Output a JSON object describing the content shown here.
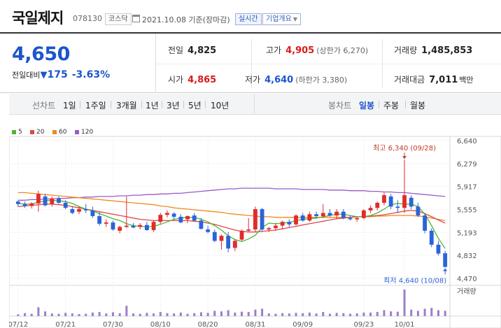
{
  "header": {
    "name": "국일제지",
    "code": "078130",
    "market": "코스닥",
    "base_date": "2021.10.08 기준(장마감)",
    "realtime_label": "실시간",
    "corp_overview_label": "기업개요"
  },
  "price": {
    "current": "4,650",
    "change_label": "전일대비",
    "change_value": "175",
    "change_rate": "-3.63%",
    "prev_close_label": "전일",
    "prev_close": "4,825",
    "high_label": "고가",
    "high": "4,905",
    "upper_limit": "(상한가 6,270)",
    "volume_label": "거래량",
    "volume": "1,485,853",
    "open_label": "시가",
    "open": "4,865",
    "low_label": "저가",
    "low": "4,640",
    "lower_limit": "(하한가 3,380)",
    "amount_label": "거래대금",
    "amount": "7,011",
    "amount_unit": "백만"
  },
  "toolbar": {
    "line_chart_label": "선차트",
    "periods": [
      "1일",
      "1주일",
      "3개월",
      "1년",
      "3년",
      "5년",
      "10년"
    ],
    "candle_chart_label": "봉차트",
    "candle_periods": [
      "일봉",
      "주봉",
      "월봉"
    ],
    "active_candle": "일봉"
  },
  "colors": {
    "up": "#e22b2b",
    "down": "#2b63d9",
    "ma5": "#4fb43a",
    "ma20": "#e04848",
    "ma60": "#f08a1e",
    "ma120": "#9b59c9"
  },
  "chart_data": {
    "type": "candlestick",
    "legend": [
      "5",
      "20",
      "60",
      "120"
    ],
    "y_ticks": [
      "6,640",
      "6,279",
      "5,917",
      "5,555",
      "5,193",
      "4,832",
      "4,470"
    ],
    "y_range": [
      4470,
      6640
    ],
    "x_labels": [
      "07/12",
      "07/21",
      "07/30",
      "08/10",
      "08/20",
      "08/31",
      "09/09",
      "09/23",
      "10/01"
    ],
    "high_annotation": "최고 6,340 (09/28)",
    "low_annotation": "최저 4,640 (10/08)",
    "volume_label": "거래량",
    "candles": [
      [
        5680,
        5700,
        5600,
        5640
      ],
      [
        5640,
        5680,
        5580,
        5610
      ],
      [
        5610,
        5670,
        5570,
        5650
      ],
      [
        5650,
        5850,
        5520,
        5800
      ],
      [
        5760,
        5800,
        5600,
        5620
      ],
      [
        5640,
        5760,
        5600,
        5730
      ],
      [
        5730,
        5760,
        5640,
        5660
      ],
      [
        5660,
        5700,
        5560,
        5580
      ],
      [
        5560,
        5600,
        5480,
        5500
      ],
      [
        5520,
        5600,
        5480,
        5560
      ],
      [
        5560,
        5640,
        5500,
        5540
      ],
      [
        5540,
        5600,
        5420,
        5450
      ],
      [
        5450,
        5520,
        5300,
        5330
      ],
      [
        5330,
        5400,
        5280,
        5350
      ],
      [
        5350,
        5380,
        5220,
        5240
      ],
      [
        5220,
        5300,
        5180,
        5280
      ],
      [
        5280,
        5760,
        5260,
        5300
      ],
      [
        5300,
        5340,
        5260,
        5270
      ],
      [
        5280,
        5340,
        5240,
        5310
      ],
      [
        5310,
        5360,
        5220,
        5230
      ],
      [
        5230,
        5380,
        5200,
        5360
      ],
      [
        5360,
        5500,
        5330,
        5470
      ],
      [
        5470,
        5540,
        5430,
        5500
      ],
      [
        5490,
        5510,
        5400,
        5440
      ],
      [
        5440,
        5480,
        5340,
        5350
      ],
      [
        5400,
        5460,
        5340,
        5450
      ],
      [
        5460,
        5500,
        5360,
        5380
      ],
      [
        5380,
        5420,
        5240,
        5250
      ],
      [
        5240,
        5300,
        5180,
        5200
      ],
      [
        5200,
        5240,
        5040,
        5060
      ],
      [
        5060,
        5160,
        4920,
        5140
      ],
      [
        5140,
        5200,
        4880,
        4940
      ],
      [
        4950,
        5090,
        4900,
        5060
      ],
      [
        5080,
        5240,
        5060,
        5220
      ],
      [
        5220,
        5420,
        5200,
        5240
      ],
      [
        5240,
        5600,
        5200,
        5560
      ],
      [
        5560,
        5580,
        5220,
        5240
      ],
      [
        5240,
        5280,
        5200,
        5260
      ],
      [
        5260,
        5340,
        5220,
        5300
      ],
      [
        5300,
        5380,
        5240,
        5360
      ],
      [
        5360,
        5400,
        5280,
        5320
      ],
      [
        5320,
        5480,
        5300,
        5460
      ],
      [
        5460,
        5500,
        5360,
        5380
      ],
      [
        5380,
        5520,
        5360,
        5480
      ],
      [
        5480,
        5520,
        5420,
        5450
      ],
      [
        5450,
        5640,
        5420,
        5500
      ],
      [
        5500,
        5560,
        5440,
        5460
      ],
      [
        5460,
        5560,
        5400,
        5520
      ],
      [
        5520,
        5560,
        5400,
        5420
      ],
      [
        5420,
        5460,
        5380,
        5400
      ],
      [
        5400,
        5440,
        5360,
        5420
      ],
      [
        5420,
        5560,
        5400,
        5540
      ],
      [
        5540,
        5620,
        5500,
        5580
      ],
      [
        5580,
        5680,
        5540,
        5660
      ],
      [
        5660,
        5820,
        5620,
        5780
      ],
      [
        5760,
        5800,
        5560,
        5600
      ],
      [
        5600,
        5700,
        5500,
        5580
      ],
      [
        5580,
        6340,
        5500,
        5780
      ],
      [
        5740,
        5780,
        5560,
        5600
      ],
      [
        5600,
        5660,
        5440,
        5460
      ],
      [
        5460,
        5500,
        5180,
        5220
      ],
      [
        5220,
        5260,
        4960,
        5000
      ],
      [
        5000,
        5060,
        4830,
        4860
      ],
      [
        4865,
        4905,
        4640,
        4650
      ]
    ],
    "volumes": [
      6,
      10,
      8,
      30,
      16,
      9,
      8,
      11,
      9,
      7,
      8,
      12,
      14,
      9,
      13,
      10,
      35,
      9,
      8,
      11,
      9,
      14,
      10,
      9,
      12,
      8,
      10,
      13,
      11,
      18,
      16,
      20,
      12,
      15,
      14,
      22,
      25,
      9,
      8,
      10,
      9,
      11,
      10,
      12,
      9,
      14,
      8,
      11,
      10,
      8,
      9,
      12,
      12,
      14,
      20,
      16,
      15,
      90,
      22,
      18,
      25,
      28,
      20,
      18
    ],
    "ma5": [
      5650,
      5640,
      5640,
      5670,
      5690,
      5700,
      5690,
      5680,
      5650,
      5600,
      5560,
      5530,
      5490,
      5450,
      5410,
      5380,
      5330,
      5300,
      5290,
      5280,
      5290,
      5320,
      5360,
      5400,
      5420,
      5430,
      5430,
      5400,
      5360,
      5300,
      5230,
      5140,
      5080,
      5050,
      5090,
      5150,
      5270,
      5340,
      5330,
      5340,
      5350,
      5380,
      5400,
      5410,
      5420,
      5440,
      5460,
      5480,
      5480,
      5460,
      5440,
      5440,
      5460,
      5500,
      5560,
      5630,
      5650,
      5640,
      5640,
      5600,
      5480,
      5300,
      5100,
      4940
    ],
    "ma20": [
      5600,
      5610,
      5620,
      5630,
      5640,
      5640,
      5630,
      5620,
      5600,
      5580,
      5560,
      5540,
      5520,
      5500,
      5480,
      5460,
      5440,
      5420,
      5400,
      5390,
      5380,
      5380,
      5380,
      5380,
      5380,
      5380,
      5370,
      5360,
      5340,
      5320,
      5290,
      5260,
      5230,
      5210,
      5200,
      5200,
      5210,
      5220,
      5230,
      5250,
      5270,
      5290,
      5310,
      5330,
      5350,
      5370,
      5390,
      5410,
      5420,
      5430,
      5440,
      5440,
      5450,
      5460,
      5470,
      5490,
      5510,
      5530,
      5540,
      5530,
      5490,
      5440,
      5390,
      5340
    ],
    "ma60": [
      5820,
      5820,
      5810,
      5800,
      5790,
      5780,
      5770,
      5760,
      5750,
      5740,
      5730,
      5720,
      5710,
      5700,
      5690,
      5680,
      5670,
      5660,
      5650,
      5640,
      5630,
      5610,
      5600,
      5580,
      5570,
      5560,
      5550,
      5540,
      5530,
      5520,
      5510,
      5490,
      5480,
      5470,
      5460,
      5450,
      5440,
      5440,
      5430,
      5430,
      5430,
      5430,
      5430,
      5430,
      5430,
      5430,
      5430,
      5430,
      5430,
      5430,
      5440,
      5440,
      5440,
      5450,
      5450,
      5460,
      5460,
      5460,
      5460,
      5450,
      5440,
      5420,
      5400,
      5380
    ],
    "ma120": [
      5700,
      5700,
      5710,
      5710,
      5720,
      5720,
      5730,
      5730,
      5740,
      5740,
      5750,
      5750,
      5760,
      5760,
      5760,
      5770,
      5770,
      5780,
      5780,
      5790,
      5790,
      5800,
      5800,
      5810,
      5810,
      5820,
      5830,
      5840,
      5850,
      5860,
      5870,
      5880,
      5880,
      5890,
      5890,
      5890,
      5890,
      5890,
      5880,
      5880,
      5880,
      5880,
      5870,
      5870,
      5870,
      5870,
      5860,
      5860,
      5860,
      5850,
      5850,
      5850,
      5840,
      5840,
      5830,
      5830,
      5820,
      5820,
      5810,
      5800,
      5790,
      5780,
      5770,
      5760
    ]
  }
}
